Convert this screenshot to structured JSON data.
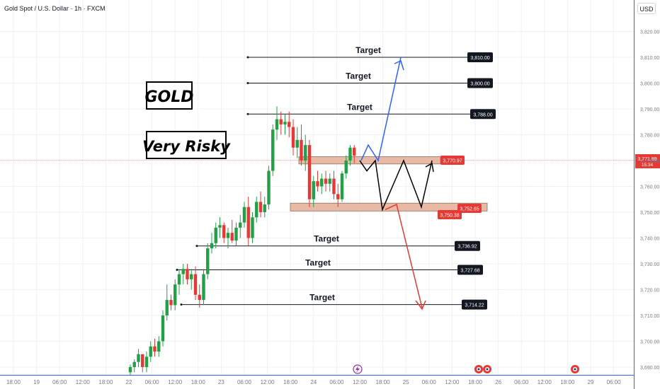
{
  "header": {
    "title": "Gold Spot / U.S. Dollar · 1h · FXCM",
    "currency": "USD"
  },
  "annotations": {
    "gold_label": "GOLD",
    "risk_label": "Very Risky",
    "target_label": "Target"
  },
  "colors": {
    "up": "#26a69a",
    "down": "#ef5350",
    "bull_candle": "#22a045",
    "bear_candle": "#e53935",
    "blue_arrow": "#2962ff",
    "red_arrow": "#e53935",
    "zone_fill": "#e8b9a4",
    "zone_border": "#8d6e63"
  },
  "chart_data": {
    "type": "candlestick",
    "title": "Gold Spot / U.S. Dollar · 1h · FXCM",
    "y_axis": {
      "ticks": [
        "3,820.00",
        "3,810.00",
        "3,800.00",
        "3,790.00",
        "3,780.00",
        "3,770.00",
        "3,760.00",
        "3,750.00",
        "3,740.00",
        "3,730.00",
        "3,720.00",
        "3,710.00",
        "3,700.00",
        "3,690.00"
      ],
      "range": [
        3687,
        3826
      ]
    },
    "x_axis": {
      "ticks": [
        "18:00",
        "19",
        "06:00",
        "12:00",
        "18:00",
        "22",
        "06:00",
        "12:00",
        "18:00",
        "23",
        "06:00",
        "12:00",
        "18:00",
        "24",
        "06:00",
        "12:00",
        "18:00",
        "25",
        "06:00",
        "12:00",
        "18:00",
        "26",
        "06:00",
        "12:00",
        "18:00",
        "29",
        "06:00"
      ]
    },
    "last_price": {
      "value": "3,771.89",
      "countdown": "15:34"
    },
    "candles": [
      {
        "o": 3688,
        "h": 3691,
        "l": 3687,
        "c": 3690
      },
      {
        "o": 3690,
        "h": 3693,
        "l": 3688,
        "c": 3692
      },
      {
        "o": 3692,
        "h": 3697,
        "l": 3690,
        "c": 3695
      },
      {
        "o": 3695,
        "h": 3694,
        "l": 3688,
        "c": 3690
      },
      {
        "o": 3690,
        "h": 3696,
        "l": 3688,
        "c": 3694
      },
      {
        "o": 3694,
        "h": 3700,
        "l": 3692,
        "c": 3698
      },
      {
        "o": 3698,
        "h": 3701,
        "l": 3694,
        "c": 3696
      },
      {
        "o": 3696,
        "h": 3702,
        "l": 3694,
        "c": 3700
      },
      {
        "o": 3700,
        "h": 3712,
        "l": 3698,
        "c": 3710
      },
      {
        "o": 3710,
        "h": 3722,
        "l": 3708,
        "c": 3716
      },
      {
        "o": 3716,
        "h": 3718,
        "l": 3712,
        "c": 3714
      },
      {
        "o": 3714,
        "h": 3724,
        "l": 3712,
        "c": 3722
      },
      {
        "o": 3722,
        "h": 3728,
        "l": 3718,
        "c": 3726
      },
      {
        "o": 3726,
        "h": 3730,
        "l": 3722,
        "c": 3728
      },
      {
        "o": 3728,
        "h": 3730,
        "l": 3722,
        "c": 3724
      },
      {
        "o": 3724,
        "h": 3728,
        "l": 3720,
        "c": 3726
      },
      {
        "o": 3726,
        "h": 3729,
        "l": 3716,
        "c": 3718
      },
      {
        "o": 3718,
        "h": 3722,
        "l": 3713,
        "c": 3716
      },
      {
        "o": 3716,
        "h": 3728,
        "l": 3714,
        "c": 3726
      },
      {
        "o": 3726,
        "h": 3738,
        "l": 3724,
        "c": 3736
      },
      {
        "o": 3736,
        "h": 3742,
        "l": 3734,
        "c": 3738
      },
      {
        "o": 3738,
        "h": 3746,
        "l": 3736,
        "c": 3744
      },
      {
        "o": 3744,
        "h": 3748,
        "l": 3740,
        "c": 3745
      },
      {
        "o": 3745,
        "h": 3746,
        "l": 3738,
        "c": 3740
      },
      {
        "o": 3740,
        "h": 3744,
        "l": 3736,
        "c": 3742
      },
      {
        "o": 3742,
        "h": 3747,
        "l": 3738,
        "c": 3739
      },
      {
        "o": 3739,
        "h": 3746,
        "l": 3737,
        "c": 3744
      },
      {
        "o": 3744,
        "h": 3749,
        "l": 3740,
        "c": 3746
      },
      {
        "o": 3746,
        "h": 3754,
        "l": 3744,
        "c": 3752
      },
      {
        "o": 3752,
        "h": 3756,
        "l": 3737,
        "c": 3740
      },
      {
        "o": 3740,
        "h": 3750,
        "l": 3738,
        "c": 3748
      },
      {
        "o": 3748,
        "h": 3756,
        "l": 3746,
        "c": 3754
      },
      {
        "o": 3754,
        "h": 3758,
        "l": 3748,
        "c": 3750
      },
      {
        "o": 3750,
        "h": 3756,
        "l": 3748,
        "c": 3753
      },
      {
        "o": 3753,
        "h": 3768,
        "l": 3751,
        "c": 3766
      },
      {
        "o": 3766,
        "h": 3784,
        "l": 3764,
        "c": 3782
      },
      {
        "o": 3782,
        "h": 3791,
        "l": 3778,
        "c": 3786
      },
      {
        "o": 3786,
        "h": 3789,
        "l": 3780,
        "c": 3784
      },
      {
        "o": 3784,
        "h": 3788,
        "l": 3780,
        "c": 3785
      },
      {
        "o": 3785,
        "h": 3789,
        "l": 3779,
        "c": 3783
      },
      {
        "o": 3783,
        "h": 3786,
        "l": 3772,
        "c": 3775
      },
      {
        "o": 3775,
        "h": 3783,
        "l": 3771,
        "c": 3778
      },
      {
        "o": 3778,
        "h": 3784,
        "l": 3768,
        "c": 3770
      },
      {
        "o": 3770,
        "h": 3780,
        "l": 3766,
        "c": 3776
      },
      {
        "o": 3776,
        "h": 3778,
        "l": 3752,
        "c": 3755
      },
      {
        "o": 3755,
        "h": 3764,
        "l": 3752,
        "c": 3762
      },
      {
        "o": 3762,
        "h": 3766,
        "l": 3758,
        "c": 3760
      },
      {
        "o": 3760,
        "h": 3765,
        "l": 3757,
        "c": 3763
      },
      {
        "o": 3763,
        "h": 3766,
        "l": 3758,
        "c": 3761
      },
      {
        "o": 3761,
        "h": 3765,
        "l": 3758,
        "c": 3763
      },
      {
        "o": 3763,
        "h": 3766,
        "l": 3755,
        "c": 3757
      },
      {
        "o": 3757,
        "h": 3761,
        "l": 3752,
        "c": 3755
      },
      {
        "o": 3755,
        "h": 3766,
        "l": 3754,
        "c": 3765
      },
      {
        "o": 3765,
        "h": 3772,
        "l": 3763,
        "c": 3770
      },
      {
        "o": 3770,
        "h": 3776,
        "l": 3768,
        "c": 3775
      },
      {
        "o": 3775,
        "h": 3776,
        "l": 3769,
        "c": 3771.89
      }
    ],
    "zones": [
      {
        "name": "resistance",
        "from": 3769.5,
        "to": 3771.5
      },
      {
        "name": "support",
        "from": 3751.0,
        "to": 3753.5
      }
    ],
    "levels": [
      {
        "label": "Target",
        "value": 3810.0,
        "text": "3,810.00"
      },
      {
        "label": "Target",
        "value": 3800.0,
        "text": "3,800.00"
      },
      {
        "label": "Target",
        "value": 3788.0,
        "text": "3,788.00"
      },
      {
        "label": "Target",
        "value": 3736.92,
        "text": "3,736.92"
      },
      {
        "label": "Target",
        "value": 3727.68,
        "text": "3,727.68"
      },
      {
        "label": "Target",
        "value": 3714.22,
        "text": "3,714.22"
      }
    ],
    "price_tags": [
      {
        "value": 3770.97,
        "text": "3,770.97"
      },
      {
        "value": 3752.65,
        "text": "3,752.65"
      },
      {
        "value": 3750.38,
        "text": "3,750.38"
      }
    ],
    "paths": {
      "blue_up": [
        [
          3770,
          3770
        ],
        [
          3774,
          3776
        ],
        [
          3778,
          3770
        ],
        [
          3782,
          3810
        ]
      ],
      "red_down": [
        [
          3774,
          3751
        ],
        [
          3782,
          3753
        ],
        [
          3788,
          3713
        ]
      ],
      "zigzag": [
        [
          3774,
          3770
        ],
        [
          3776,
          3766
        ],
        [
          3778,
          3770
        ],
        [
          3782,
          3751
        ],
        [
          3788,
          3770
        ],
        [
          3794,
          3752
        ],
        [
          3798,
          3770
        ]
      ]
    }
  }
}
